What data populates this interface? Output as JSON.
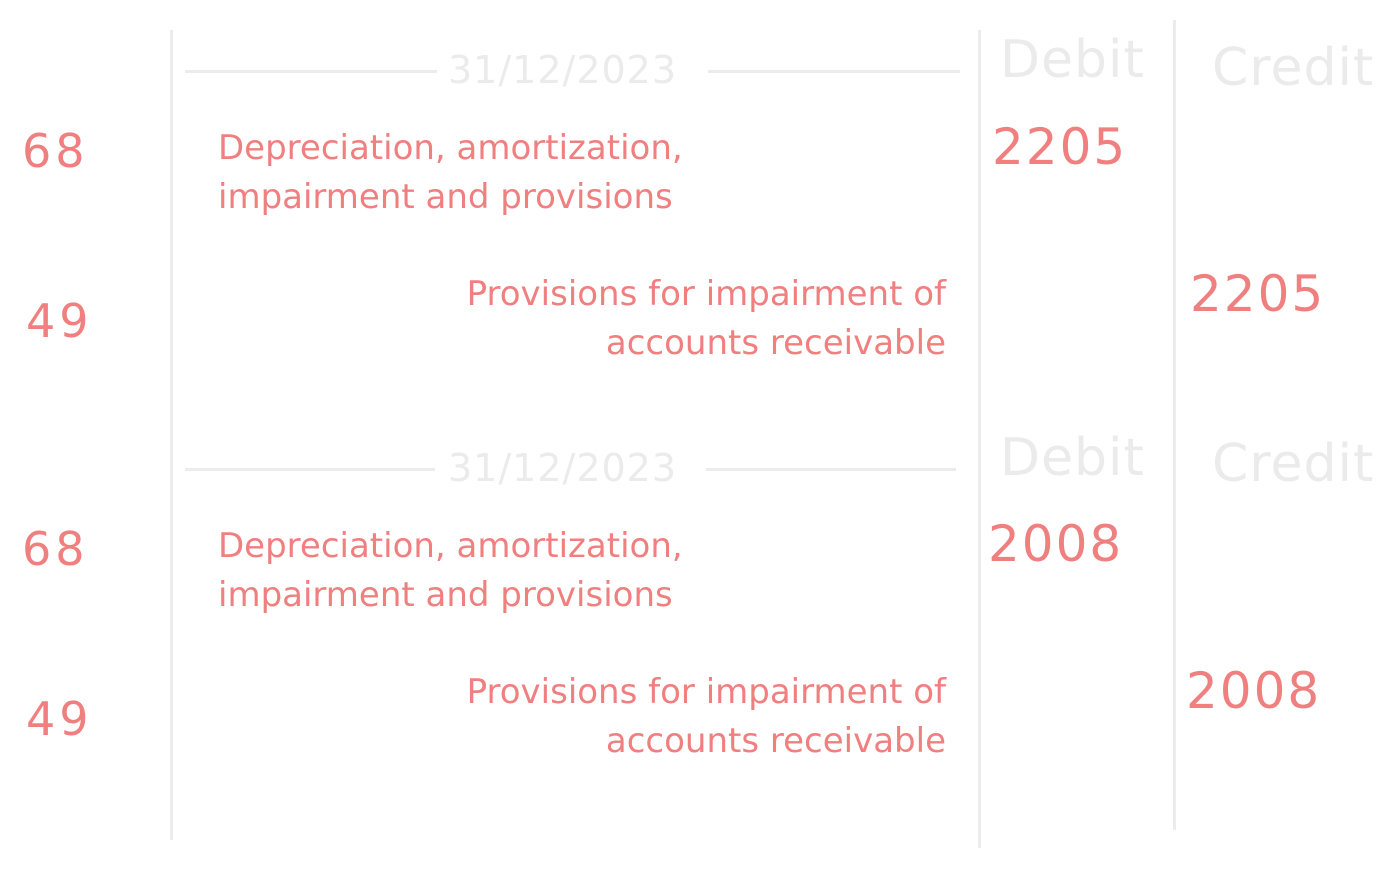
{
  "entries": [
    {
      "date": "31/12/2023",
      "debit_header": "Debit",
      "credit_header": "Credit",
      "debit_line": {
        "account": "68",
        "label": "Depreciation, amortization,\n impairment and provisions",
        "amount": "2205"
      },
      "credit_line": {
        "account": "49",
        "label": "Provisions for impairment of\naccounts receivable",
        "amount": "2205"
      }
    },
    {
      "date": "31/12/2023",
      "debit_header": "Debit",
      "credit_header": "Credit",
      "debit_line": {
        "account": "68",
        "label": "Depreciation, amortization,\n impairment and provisions",
        "amount": "2008"
      },
      "credit_line": {
        "account": "49",
        "label": "Provisions for impairment of\naccounts receivable",
        "amount": "2008"
      }
    }
  ],
  "colors": {
    "ink": "#f08080",
    "rule": "#ececec",
    "faded_text": "#ebebeb"
  }
}
